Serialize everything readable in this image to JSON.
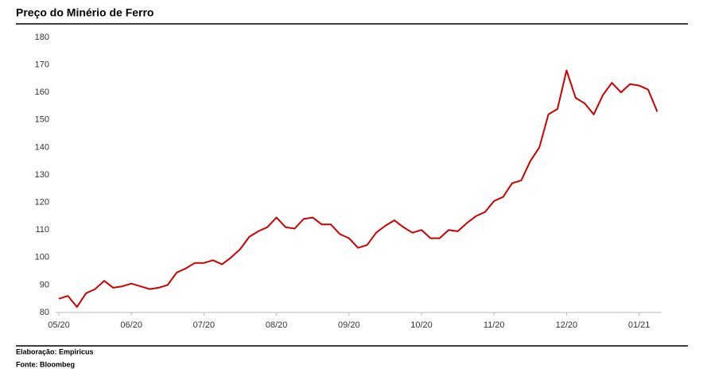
{
  "chart_data": {
    "type": "line",
    "title": "Preço do Minério de Ferro",
    "categories": [
      "05/20",
      null,
      null,
      null,
      null,
      null,
      null,
      null,
      "06/20",
      null,
      null,
      null,
      null,
      null,
      null,
      null,
      "07/20",
      null,
      null,
      null,
      null,
      null,
      null,
      null,
      "08/20",
      null,
      null,
      null,
      null,
      null,
      null,
      null,
      "09/20",
      null,
      null,
      null,
      null,
      null,
      null,
      null,
      "10/20",
      null,
      null,
      null,
      null,
      null,
      null,
      null,
      "11/20",
      null,
      null,
      null,
      null,
      null,
      null,
      null,
      "12/20",
      null,
      null,
      null,
      null,
      null,
      null,
      null,
      "01/21",
      null,
      null
    ],
    "values": [
      85,
      86,
      82,
      87,
      88.5,
      91.5,
      89,
      89.5,
      90.5,
      89.5,
      88.5,
      89,
      90,
      94.5,
      96,
      98,
      98,
      99,
      97.5,
      100,
      103,
      107.5,
      109.5,
      111,
      114.5,
      111,
      110.5,
      114,
      114.5,
      112,
      112,
      108.5,
      107,
      103.5,
      104.5,
      109,
      111.5,
      113.5,
      111,
      109,
      110,
      107,
      107,
      110,
      109.5,
      112.5,
      115,
      116.5,
      120.5,
      122,
      127,
      128,
      135,
      140,
      152,
      154,
      168,
      158,
      156,
      152,
      159,
      163.5,
      160,
      163,
      162.5,
      161,
      153
    ],
    "color": "#d00000",
    "ylim": [
      80,
      180
    ],
    "yticks": [
      80,
      90,
      100,
      110,
      120,
      130,
      140,
      150,
      160,
      170,
      180
    ],
    "grid": false,
    "footer": [
      "Elaboração: Empiricus",
      "Fonte: Bloombeg"
    ]
  }
}
